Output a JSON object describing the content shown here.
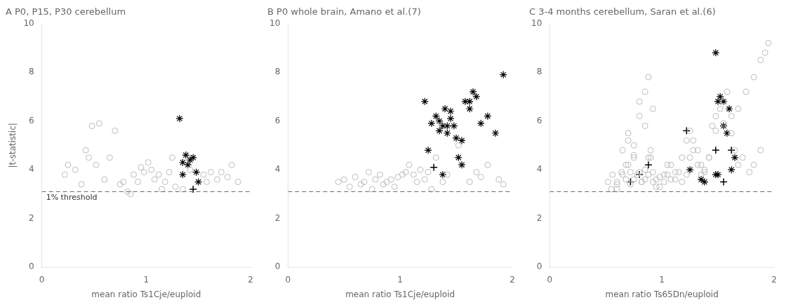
{
  "chart_data": [
    {
      "type": "scatter",
      "title": "A P0, P15, P30 cerebellum",
      "x_label": "mean ratio Ts1Cje/euploid",
      "y_label": "|t-statistic|",
      "xlim": [
        0,
        2
      ],
      "ylim": [
        0,
        10
      ],
      "xticks": [
        0,
        1,
        2
      ],
      "yticks": [
        0,
        2,
        4,
        6,
        8,
        10
      ],
      "grid": false,
      "annotations": [
        {
          "type": "hline",
          "y": 3.1,
          "color": "#666666",
          "line_style": "dashed",
          "label": "1% threshold"
        }
      ],
      "series": [
        {
          "color": "#bbbbbb",
          "marker": "open_circle",
          "x": [
            0.22,
            0.25,
            0.32,
            0.38,
            0.42,
            0.45,
            0.48,
            0.52,
            0.55,
            0.6,
            0.65,
            0.7,
            0.75,
            0.78,
            0.82,
            0.85,
            0.88,
            0.92,
            0.95,
            0.98,
            1.02,
            1.05,
            1.08,
            1.12,
            1.15,
            1.18,
            1.22,
            1.25,
            1.28,
            1.35,
            1.42,
            1.55,
            1.58,
            1.62,
            1.68,
            1.72,
            1.78,
            1.82,
            1.88
          ],
          "values": [
            3.8,
            4.2,
            4.0,
            3.4,
            4.8,
            4.5,
            5.8,
            4.2,
            5.9,
            3.6,
            4.5,
            5.6,
            3.4,
            3.5,
            3.1,
            3.0,
            3.8,
            3.5,
            4.1,
            3.9,
            4.3,
            4.0,
            3.6,
            3.8,
            3.2,
            3.5,
            3.9,
            4.5,
            3.3,
            3.2,
            4.0,
            3.8,
            3.5,
            3.9,
            3.6,
            3.9,
            3.7,
            4.2,
            3.5
          ]
        },
        {
          "color": "#000000",
          "marker": "star",
          "x": [
            1.32,
            1.35,
            1.38,
            1.4,
            1.42,
            1.45,
            1.48,
            1.5,
            1.35
          ],
          "values": [
            6.1,
            4.3,
            4.6,
            4.2,
            4.4,
            4.5,
            3.9,
            3.5,
            3.8
          ]
        },
        {
          "color": "#000000",
          "marker": "plus",
          "x": [
            1.45
          ],
          "values": [
            3.2
          ]
        }
      ]
    },
    {
      "type": "scatter",
      "title": "B P0 whole brain, Amano et al.(7)",
      "x_label": "mean ratio Ts1Cje/euploid",
      "xlim": [
        0,
        2
      ],
      "ylim": [
        0,
        10
      ],
      "xticks": [
        0,
        1,
        2
      ],
      "yticks": [
        0,
        2,
        4,
        6,
        8,
        10
      ],
      "grid": false,
      "annotations": [
        {
          "type": "hline",
          "y": 3.1,
          "color": "#666666",
          "line_style": "dashed"
        }
      ],
      "series": [
        {
          "color": "#bbbbbb",
          "marker": "open_circle",
          "x": [
            0.45,
            0.5,
            0.55,
            0.6,
            0.65,
            0.68,
            0.72,
            0.75,
            0.78,
            0.82,
            0.85,
            0.88,
            0.92,
            0.95,
            0.98,
            1.02,
            1.05,
            1.08,
            1.12,
            1.15,
            1.18,
            1.22,
            1.25,
            1.28,
            1.32,
            1.38,
            1.42,
            1.52,
            1.62,
            1.68,
            1.72,
            1.78,
            1.88,
            1.92
          ],
          "values": [
            3.5,
            3.6,
            3.3,
            3.7,
            3.4,
            3.5,
            3.9,
            3.2,
            3.6,
            3.8,
            3.4,
            3.5,
            3.6,
            3.3,
            3.7,
            3.8,
            3.9,
            4.2,
            3.8,
            3.5,
            4.0,
            3.6,
            3.9,
            3.2,
            4.5,
            3.5,
            3.8,
            5.0,
            3.5,
            3.9,
            3.7,
            4.2,
            3.6,
            3.4
          ]
        },
        {
          "color": "#000000",
          "marker": "star",
          "x": [
            1.22,
            1.28,
            1.32,
            1.35,
            1.38,
            1.4,
            1.42,
            1.45,
            1.48,
            1.52,
            1.55,
            1.58,
            1.62,
            1.65,
            1.68,
            1.72,
            1.78,
            1.85,
            1.92,
            1.35,
            1.42,
            1.5,
            1.45,
            1.55,
            1.25,
            1.38,
            1.62
          ],
          "values": [
            6.8,
            5.9,
            6.2,
            6.0,
            5.8,
            6.5,
            5.5,
            6.1,
            5.8,
            4.5,
            5.2,
            6.8,
            6.5,
            7.2,
            7.0,
            5.9,
            6.2,
            5.5,
            7.9,
            5.6,
            5.8,
            5.3,
            6.4,
            4.2,
            4.8,
            3.8,
            6.8
          ]
        },
        {
          "color": "#000000",
          "marker": "plus",
          "x": [
            1.3
          ],
          "values": [
            4.1
          ]
        }
      ]
    },
    {
      "type": "scatter",
      "title": "C 3-4 months cerebellum, Saran et al.(6)",
      "x_label": "mean ratio Ts65Dn/euploid",
      "xlim": [
        0,
        2
      ],
      "ylim": [
        0,
        10
      ],
      "xticks": [
        0,
        1,
        2
      ],
      "yticks": [
        0,
        2,
        4,
        6,
        8,
        10
      ],
      "grid": false,
      "annotations": [
        {
          "type": "hline",
          "y": 3.1,
          "color": "#666666",
          "line_style": "dashed"
        }
      ],
      "series": [
        {
          "color": "#bbbbbb",
          "marker": "open_circle",
          "x": [
            0.52,
            0.56,
            0.6,
            0.64,
            0.68,
            0.72,
            0.75,
            0.78,
            0.82,
            0.85,
            0.88,
            0.9,
            0.92,
            0.95,
            0.98,
            0.7,
            0.75,
            0.8,
            0.85,
            0.9,
            0.65,
            0.7,
            0.75,
            0.8,
            0.85,
            0.88,
            0.92,
            1.02,
            1.05,
            1.08,
            1.12,
            1.15,
            1.18,
            1.22,
            1.25,
            1.28,
            1.32,
            1.35,
            1.38,
            1.42,
            1.45,
            1.48,
            1.52,
            1.55,
            1.58,
            1.62,
            1.65,
            1.68,
            1.72,
            1.78,
            1.82,
            1.88,
            1.92,
            1.95,
            0.55,
            0.6,
            0.65,
            0.7,
            0.75,
            0.8,
            0.85,
            0.82,
            0.88,
            0.6,
            0.68,
            0.72,
            0.92,
            0.95,
            0.98,
            1.02,
            1.05,
            1.08,
            1.12,
            1.18,
            1.22,
            1.25,
            1.28,
            1.32,
            1.35,
            1.38,
            1.42,
            1.48,
            1.55,
            1.62,
            1.68,
            1.75,
            1.82,
            1.88
          ],
          "values": [
            3.5,
            3.8,
            3.2,
            3.9,
            4.2,
            3.4,
            3.6,
            3.8,
            3.5,
            4.0,
            4.5,
            4.8,
            3.9,
            3.6,
            3.3,
            5.5,
            5.0,
            6.2,
            5.8,
            4.5,
            4.8,
            5.2,
            4.6,
            6.8,
            7.2,
            7.8,
            6.5,
            3.5,
            3.8,
            4.2,
            3.6,
            3.9,
            4.5,
            5.2,
            5.6,
            4.8,
            4.2,
            3.8,
            4.0,
            4.5,
            5.8,
            6.2,
            6.5,
            6.8,
            7.2,
            5.5,
            4.8,
            4.2,
            4.5,
            3.9,
            4.2,
            4.8,
            8.8,
            9.2,
            3.2,
            3.5,
            3.8,
            4.2,
            4.5,
            3.9,
            3.6,
            3.5,
            3.8,
            3.4,
            3.6,
            3.9,
            3.5,
            3.3,
            3.7,
            3.8,
            4.2,
            3.6,
            3.9,
            3.5,
            3.8,
            4.5,
            5.2,
            4.8,
            4.2,
            3.9,
            4.5,
            5.6,
            5.9,
            6.2,
            6.5,
            7.2,
            7.8,
            8.5
          ]
        },
        {
          "color": "#000000",
          "marker": "star",
          "x": [
            1.48,
            1.5,
            1.52,
            1.55,
            1.58,
            1.6,
            1.62,
            1.65,
            1.5,
            1.35,
            1.38,
            1.25,
            1.48,
            1.55
          ],
          "values": [
            8.8,
            6.8,
            7.0,
            5.8,
            5.5,
            6.5,
            4.0,
            4.5,
            3.8,
            3.6,
            3.5,
            4.0,
            3.8,
            6.8
          ]
        },
        {
          "color": "#000000",
          "marker": "plus",
          "x": [
            0.72,
            0.8,
            0.88,
            1.22,
            1.48,
            1.55,
            1.62
          ],
          "values": [
            3.5,
            3.8,
            4.2,
            5.6,
            4.8,
            3.5,
            4.8
          ]
        }
      ]
    }
  ]
}
